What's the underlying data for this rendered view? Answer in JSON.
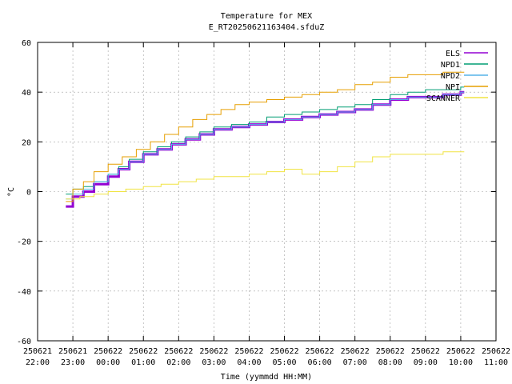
{
  "chart_data": {
    "type": "line",
    "title": "Temperature for MEX",
    "subtitle": "E_RT20250621163404.sfduZ",
    "xlabel": "Time (yymmdd HH:MM)",
    "ylabel": "°C",
    "ylim": [
      -60,
      60
    ],
    "yticks": [
      -60,
      -40,
      -20,
      0,
      20,
      40,
      60
    ],
    "xlim": [
      22.0,
      35.0
    ],
    "xticks": [
      {
        "value": 22,
        "date": "250621",
        "time": "22:00"
      },
      {
        "value": 23,
        "date": "250621",
        "time": "23:00"
      },
      {
        "value": 24,
        "date": "250622",
        "time": "00:00"
      },
      {
        "value": 25,
        "date": "250622",
        "time": "01:00"
      },
      {
        "value": 26,
        "date": "250622",
        "time": "02:00"
      },
      {
        "value": 27,
        "date": "250622",
        "time": "03:00"
      },
      {
        "value": 28,
        "date": "250622",
        "time": "04:00"
      },
      {
        "value": 29,
        "date": "250622",
        "time": "05:00"
      },
      {
        "value": 30,
        "date": "250622",
        "time": "06:00"
      },
      {
        "value": 31,
        "date": "250622",
        "time": "07:00"
      },
      {
        "value": 32,
        "date": "250622",
        "time": "08:00"
      },
      {
        "value": 33,
        "date": "250622",
        "time": "09:00"
      },
      {
        "value": 34,
        "date": "250622",
        "time": "10:00"
      },
      {
        "value": 35,
        "date": "250622",
        "time": "11:00"
      }
    ],
    "grid": true,
    "legend_position": "top-right",
    "series": [
      {
        "name": "ELS",
        "color": "#9400d3",
        "width": 3,
        "x": [
          22.8,
          23.0,
          23.3,
          23.6,
          24.0,
          24.3,
          24.6,
          25.0,
          25.4,
          25.8,
          26.2,
          26.6,
          27.0,
          27.5,
          28.0,
          28.5,
          29.0,
          29.5,
          30.0,
          30.5,
          31.0,
          31.5,
          32.0,
          32.5,
          33.0,
          33.5,
          34.0,
          34.1
        ],
        "y": [
          -6,
          -2,
          0,
          3,
          6,
          9,
          12,
          15,
          17,
          19,
          21,
          23,
          25,
          26,
          27,
          28,
          29,
          30,
          31,
          32,
          33,
          35,
          37,
          38,
          38,
          39,
          40,
          40
        ]
      },
      {
        "name": "NPD1",
        "color": "#009e73",
        "width": 1,
        "x": [
          22.8,
          23.0,
          23.3,
          23.6,
          24.0,
          24.3,
          24.6,
          25.0,
          25.4,
          25.8,
          26.2,
          26.6,
          27.0,
          27.5,
          28.0,
          28.5,
          29.0,
          29.5,
          30.0,
          30.5,
          31.0,
          31.5,
          32.0,
          32.5,
          33.0,
          33.5,
          34.0,
          34.1
        ],
        "y": [
          -1,
          1,
          2,
          4,
          7,
          10,
          13,
          16,
          18,
          20,
          22,
          24,
          26,
          27,
          28,
          30,
          31,
          32,
          33,
          34,
          35,
          37,
          39,
          40,
          41,
          41,
          42,
          42
        ]
      },
      {
        "name": "NPD2",
        "color": "#56b4e9",
        "width": 1,
        "x": [
          22.8,
          23.0,
          23.3,
          23.6,
          24.0,
          24.3,
          24.6,
          25.0,
          25.4,
          25.8,
          26.2,
          26.6,
          27.0,
          27.5,
          28.0,
          28.5,
          29.0,
          29.5,
          30.0,
          30.5,
          31.0,
          31.5,
          32.0,
          32.5,
          33.0,
          33.5,
          34.0,
          34.1
        ],
        "y": [
          -3,
          -1,
          1,
          4,
          7,
          9,
          12,
          15,
          17,
          19,
          21,
          23,
          25,
          26,
          27,
          28,
          29,
          30,
          31,
          32,
          33,
          35,
          37,
          38,
          38,
          39,
          40,
          40
        ]
      },
      {
        "name": "NPI",
        "color": "#e69f00",
        "width": 1,
        "x": [
          22.8,
          23.0,
          23.3,
          23.6,
          24.0,
          24.4,
          24.8,
          25.2,
          25.6,
          26.0,
          26.4,
          26.8,
          27.2,
          27.6,
          28.0,
          28.5,
          29.0,
          29.5,
          30.0,
          30.5,
          31.0,
          31.5,
          32.0,
          32.5,
          33.0,
          33.5,
          34.0,
          34.1
        ],
        "y": [
          -4,
          1,
          4,
          8,
          11,
          14,
          17,
          20,
          23,
          26,
          29,
          31,
          33,
          35,
          36,
          37,
          38,
          39,
          40,
          41,
          43,
          44,
          46,
          47,
          47,
          48,
          48,
          48
        ]
      },
      {
        "name": "SCANNER",
        "color": "#f0e442",
        "width": 1,
        "x": [
          22.8,
          23.2,
          23.6,
          24.0,
          24.5,
          25.0,
          25.5,
          26.0,
          26.5,
          27.0,
          27.5,
          28.0,
          28.5,
          29.0,
          29.5,
          30.0,
          30.5,
          31.0,
          31.5,
          32.0,
          32.5,
          33.0,
          33.5,
          34.0,
          34.1
        ],
        "y": [
          -3,
          -2,
          -1,
          0,
          1,
          2,
          3,
          4,
          5,
          6,
          6,
          7,
          8,
          9,
          7,
          8,
          10,
          12,
          14,
          15,
          15,
          15,
          16,
          16,
          16
        ]
      }
    ]
  }
}
